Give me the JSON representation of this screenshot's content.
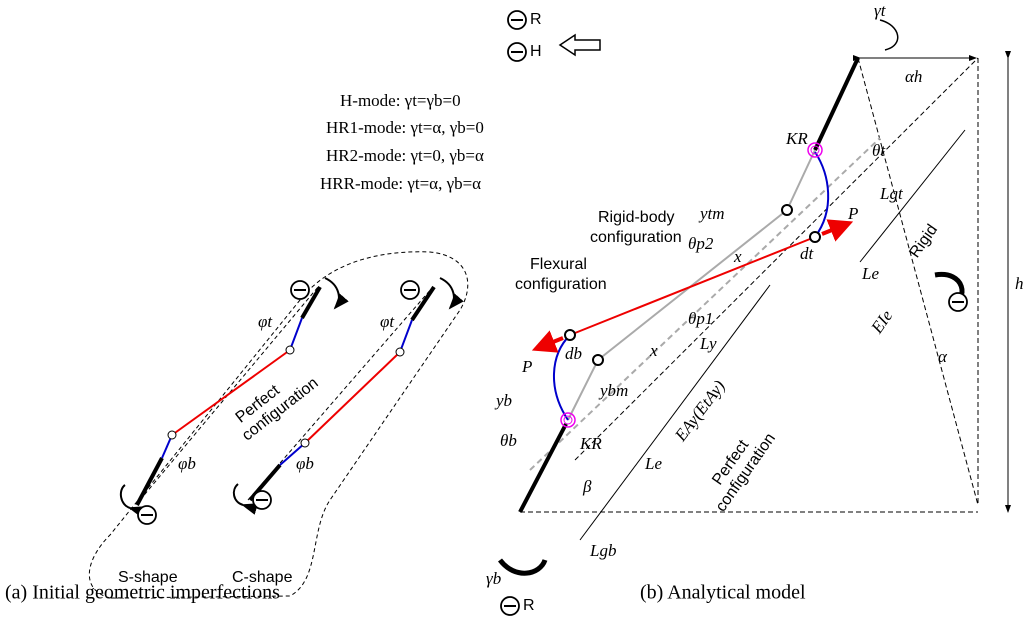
{
  "panel_a": {
    "modes": [
      "H-mode: γt=γb=0",
      "HR1-mode: γt=α, γb=0",
      "HR2-mode: γt=0, γb=α",
      "HRR-mode: γt=α, γb=α"
    ],
    "perfect_configuration": [
      "Perfect",
      "configuration"
    ],
    "s_shape": "S-shape",
    "c_shape": "C-shape",
    "phi_t": [
      "φt",
      "φt"
    ],
    "phi_b": [
      "φb",
      "φb"
    ],
    "caption": "(a) Initial geometric imperfections"
  },
  "panel_b": {
    "rigid_body": [
      "Rigid-body",
      "configuration"
    ],
    "flexural": [
      "Flexural",
      "configuration"
    ],
    "perfect": [
      "Perfect",
      "configuration"
    ],
    "symbols": [
      "R",
      "H",
      "γt",
      "αh",
      "h",
      "θt",
      "KR",
      "ytm",
      "x",
      "P",
      "dt",
      "Le",
      "Lgt",
      "Rigid",
      "EIe",
      "θp2",
      "θp1",
      "db",
      "P",
      "x",
      "yb",
      "ybm",
      "Ly",
      "EAy(EtAy)",
      "θb",
      "KR",
      "Le",
      "β",
      "Lgb",
      "α",
      "γb",
      "R"
    ],
    "caption": "(b) Analytical model"
  }
}
